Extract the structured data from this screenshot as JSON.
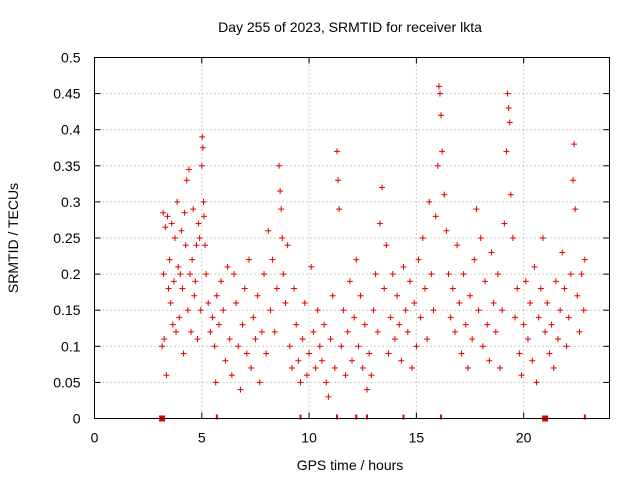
{
  "chart_data": {
    "type": "scatter",
    "title": "Day 255 of 2023, SRMTID for receiver lkta",
    "xlabel": "GPS time / hours",
    "ylabel": "SRMTID / TECUs",
    "xlim": [
      0,
      24
    ],
    "ylim": [
      0,
      0.5
    ],
    "xticks": [
      0,
      5,
      10,
      15,
      20
    ],
    "yticks": [
      0,
      0.05,
      0.1,
      0.15,
      0.2,
      0.25,
      0.3,
      0.35,
      0.4,
      0.45,
      0.5
    ],
    "grid": true,
    "legend": "none",
    "marker": "+",
    "color": "#e00000",
    "zero_markers_x": [
      3.15,
      5.7,
      9.6,
      11.3,
      12.2,
      12.7,
      14.4,
      16.15,
      21.0,
      22.85
    ],
    "zero_markers_filled_x": [
      3.15,
      21.0
    ],
    "series": [
      {
        "values": [
          [
            3.15,
            0.1
          ],
          [
            3.2,
            0.285
          ],
          [
            3.22,
            0.2
          ],
          [
            3.25,
            0.11
          ],
          [
            3.3,
            0.265
          ],
          [
            3.35,
            0.06
          ],
          [
            3.4,
            0.28
          ],
          [
            3.45,
            0.18
          ],
          [
            3.5,
            0.22
          ],
          [
            3.55,
            0.16
          ],
          [
            3.6,
            0.27
          ],
          [
            3.65,
            0.13
          ],
          [
            3.7,
            0.19
          ],
          [
            3.75,
            0.25
          ],
          [
            3.8,
            0.12
          ],
          [
            3.85,
            0.3
          ],
          [
            3.9,
            0.21
          ],
          [
            3.95,
            0.14
          ],
          [
            4.0,
            0.2
          ],
          [
            4.05,
            0.26
          ],
          [
            4.1,
            0.18
          ],
          [
            4.15,
            0.09
          ],
          [
            4.2,
            0.285
          ],
          [
            4.25,
            0.24
          ],
          [
            4.3,
            0.33
          ],
          [
            4.35,
            0.15
          ],
          [
            4.4,
            0.345
          ],
          [
            4.45,
            0.2
          ],
          [
            4.5,
            0.12
          ],
          [
            4.55,
            0.22
          ],
          [
            4.6,
            0.29
          ],
          [
            4.65,
            0.17
          ],
          [
            4.7,
            0.19
          ],
          [
            4.75,
            0.24
          ],
          [
            4.8,
            0.11
          ],
          [
            4.85,
            0.27
          ],
          [
            4.9,
            0.25
          ],
          [
            4.95,
            0.15
          ],
          [
            5.0,
            0.35
          ],
          [
            5.02,
            0.39
          ],
          [
            5.05,
            0.375
          ],
          [
            5.08,
            0.3
          ],
          [
            5.1,
            0.28
          ],
          [
            5.15,
            0.24
          ],
          [
            5.2,
            0.2
          ],
          [
            5.3,
            0.16
          ],
          [
            5.4,
            0.12
          ],
          [
            5.5,
            0.14
          ],
          [
            5.6,
            0.1
          ],
          [
            5.65,
            0.05
          ],
          [
            5.7,
            0.17
          ],
          [
            5.8,
            0.13
          ],
          [
            5.9,
            0.19
          ],
          [
            6.0,
            0.15
          ],
          [
            6.1,
            0.08
          ],
          [
            6.2,
            0.21
          ],
          [
            6.3,
            0.11
          ],
          [
            6.4,
            0.06
          ],
          [
            6.5,
            0.2
          ],
          [
            6.6,
            0.16
          ],
          [
            6.7,
            0.1
          ],
          [
            6.8,
            0.04
          ],
          [
            6.9,
            0.13
          ],
          [
            7.0,
            0.18
          ],
          [
            7.1,
            0.09
          ],
          [
            7.2,
            0.22
          ],
          [
            7.3,
            0.07
          ],
          [
            7.4,
            0.14
          ],
          [
            7.5,
            0.11
          ],
          [
            7.6,
            0.17
          ],
          [
            7.7,
            0.05
          ],
          [
            7.8,
            0.12
          ],
          [
            7.9,
            0.2
          ],
          [
            8.0,
            0.09
          ],
          [
            8.1,
            0.26
          ],
          [
            8.2,
            0.15
          ],
          [
            8.3,
            0.22
          ],
          [
            8.4,
            0.12
          ],
          [
            8.5,
            0.18
          ],
          [
            8.6,
            0.35
          ],
          [
            8.65,
            0.315
          ],
          [
            8.7,
            0.29
          ],
          [
            8.75,
            0.25
          ],
          [
            8.8,
            0.2
          ],
          [
            8.9,
            0.16
          ],
          [
            9.0,
            0.24
          ],
          [
            9.1,
            0.1
          ],
          [
            9.2,
            0.07
          ],
          [
            9.3,
            0.18
          ],
          [
            9.4,
            0.13
          ],
          [
            9.5,
            0.08
          ],
          [
            9.6,
            0.05
          ],
          [
            9.7,
            0.11
          ],
          [
            9.8,
            0.16
          ],
          [
            9.9,
            0.06
          ],
          [
            10.0,
            0.09
          ],
          [
            10.1,
            0.21
          ],
          [
            10.2,
            0.12
          ],
          [
            10.3,
            0.07
          ],
          [
            10.4,
            0.15
          ],
          [
            10.5,
            0.1
          ],
          [
            10.6,
            0.08
          ],
          [
            10.7,
            0.13
          ],
          [
            10.8,
            0.05
          ],
          [
            10.9,
            0.03
          ],
          [
            11.0,
            0.11
          ],
          [
            11.1,
            0.17
          ],
          [
            11.2,
            0.07
          ],
          [
            11.3,
            0.37
          ],
          [
            11.35,
            0.33
          ],
          [
            11.4,
            0.29
          ],
          [
            11.5,
            0.1
          ],
          [
            11.6,
            0.15
          ],
          [
            11.7,
            0.06
          ],
          [
            11.8,
            0.12
          ],
          [
            11.9,
            0.19
          ],
          [
            12.0,
            0.08
          ],
          [
            12.1,
            0.14
          ],
          [
            12.2,
            0.22
          ],
          [
            12.3,
            0.1
          ],
          [
            12.4,
            0.17
          ],
          [
            12.5,
            0.07
          ],
          [
            12.6,
            0.13
          ],
          [
            12.7,
            0.04
          ],
          [
            12.8,
            0.09
          ],
          [
            12.9,
            0.06
          ],
          [
            13.0,
            0.15
          ],
          [
            13.1,
            0.2
          ],
          [
            13.2,
            0.12
          ],
          [
            13.3,
            0.27
          ],
          [
            13.4,
            0.32
          ],
          [
            13.5,
            0.18
          ],
          [
            13.6,
            0.24
          ],
          [
            13.7,
            0.09
          ],
          [
            13.8,
            0.14
          ],
          [
            13.9,
            0.2
          ],
          [
            14.0,
            0.11
          ],
          [
            14.1,
            0.17
          ],
          [
            14.2,
            0.13
          ],
          [
            14.3,
            0.08
          ],
          [
            14.4,
            0.21
          ],
          [
            14.5,
            0.15
          ],
          [
            14.6,
            0.12
          ],
          [
            14.7,
            0.19
          ],
          [
            14.8,
            0.07
          ],
          [
            14.9,
            0.16
          ],
          [
            15.0,
            0.1
          ],
          [
            15.1,
            0.22
          ],
          [
            15.2,
            0.14
          ],
          [
            15.3,
            0.25
          ],
          [
            15.4,
            0.18
          ],
          [
            15.5,
            0.11
          ],
          [
            15.6,
            0.3
          ],
          [
            15.7,
            0.2
          ],
          [
            15.8,
            0.15
          ],
          [
            15.9,
            0.28
          ],
          [
            16.0,
            0.35
          ],
          [
            16.05,
            0.46
          ],
          [
            16.1,
            0.45
          ],
          [
            16.15,
            0.42
          ],
          [
            16.2,
            0.37
          ],
          [
            16.3,
            0.31
          ],
          [
            16.4,
            0.26
          ],
          [
            16.5,
            0.2
          ],
          [
            16.6,
            0.14
          ],
          [
            16.7,
            0.18
          ],
          [
            16.8,
            0.12
          ],
          [
            16.9,
            0.24
          ],
          [
            17.0,
            0.16
          ],
          [
            17.1,
            0.09
          ],
          [
            17.2,
            0.2
          ],
          [
            17.3,
            0.13
          ],
          [
            17.4,
            0.07
          ],
          [
            17.5,
            0.17
          ],
          [
            17.6,
            0.11
          ],
          [
            17.7,
            0.22
          ],
          [
            17.8,
            0.29
          ],
          [
            17.9,
            0.15
          ],
          [
            18.0,
            0.25
          ],
          [
            18.1,
            0.1
          ],
          [
            18.2,
            0.19
          ],
          [
            18.3,
            0.13
          ],
          [
            18.4,
            0.08
          ],
          [
            18.5,
            0.23
          ],
          [
            18.6,
            0.16
          ],
          [
            18.7,
            0.12
          ],
          [
            18.8,
            0.2
          ],
          [
            18.9,
            0.07
          ],
          [
            19.0,
            0.15
          ],
          [
            19.1,
            0.27
          ],
          [
            19.2,
            0.37
          ],
          [
            19.25,
            0.45
          ],
          [
            19.3,
            0.43
          ],
          [
            19.35,
            0.41
          ],
          [
            19.4,
            0.31
          ],
          [
            19.5,
            0.25
          ],
          [
            19.6,
            0.14
          ],
          [
            19.7,
            0.18
          ],
          [
            19.8,
            0.09
          ],
          [
            19.9,
            0.06
          ],
          [
            20.0,
            0.13
          ],
          [
            20.1,
            0.19
          ],
          [
            20.2,
            0.11
          ],
          [
            20.3,
            0.16
          ],
          [
            20.4,
            0.08
          ],
          [
            20.5,
            0.21
          ],
          [
            20.6,
            0.05
          ],
          [
            20.7,
            0.14
          ],
          [
            20.8,
            0.18
          ],
          [
            20.9,
            0.25
          ],
          [
            21.0,
            0.12
          ],
          [
            21.1,
            0.16
          ],
          [
            21.2,
            0.09
          ],
          [
            21.3,
            0.13
          ],
          [
            21.4,
            0.07
          ],
          [
            21.5,
            0.19
          ],
          [
            21.6,
            0.11
          ],
          [
            21.7,
            0.15
          ],
          [
            21.8,
            0.23
          ],
          [
            21.9,
            0.18
          ],
          [
            22.0,
            0.1
          ],
          [
            22.1,
            0.14
          ],
          [
            22.2,
            0.2
          ],
          [
            22.3,
            0.33
          ],
          [
            22.35,
            0.38
          ],
          [
            22.4,
            0.29
          ],
          [
            22.5,
            0.17
          ],
          [
            22.6,
            0.12
          ],
          [
            22.7,
            0.2
          ],
          [
            22.8,
            0.15
          ],
          [
            22.85,
            0.22
          ]
        ]
      }
    ]
  }
}
